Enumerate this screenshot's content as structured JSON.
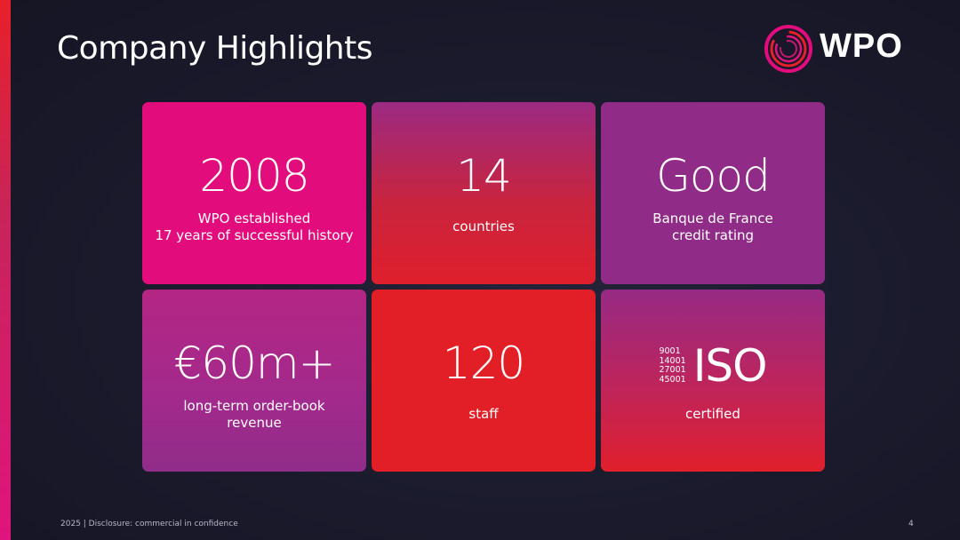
{
  "slide": {
    "title": "Company Highlights",
    "logo_text": "WPO"
  },
  "highlights": [
    {
      "figure": "2008",
      "label_lines": [
        "WPO established",
        "17 years of successful history"
      ]
    },
    {
      "figure": "14",
      "label_lines": [
        "countries"
      ]
    },
    {
      "figure": "Good",
      "label_lines": [
        "Banque de France",
        "credit rating"
      ]
    },
    {
      "figure": "€60m+",
      "label_lines": [
        "long-term order-book",
        "revenue"
      ]
    },
    {
      "figure": "120",
      "label_lines": [
        "staff"
      ]
    },
    {
      "figure": "ISO",
      "iso_codes": [
        "9001",
        "14001",
        "27001",
        "45001"
      ],
      "label_lines": [
        "certified"
      ]
    }
  ],
  "footer": {
    "text": "2025 | Disclosure: commercial in confidence",
    "page_number": "4"
  },
  "colors": {
    "magenta": "#e20c7c",
    "red": "#e21f26",
    "purple": "#902c88",
    "background": "#1a1a2c"
  },
  "icons": {
    "logo": "wpo-ring-logo-icon"
  }
}
